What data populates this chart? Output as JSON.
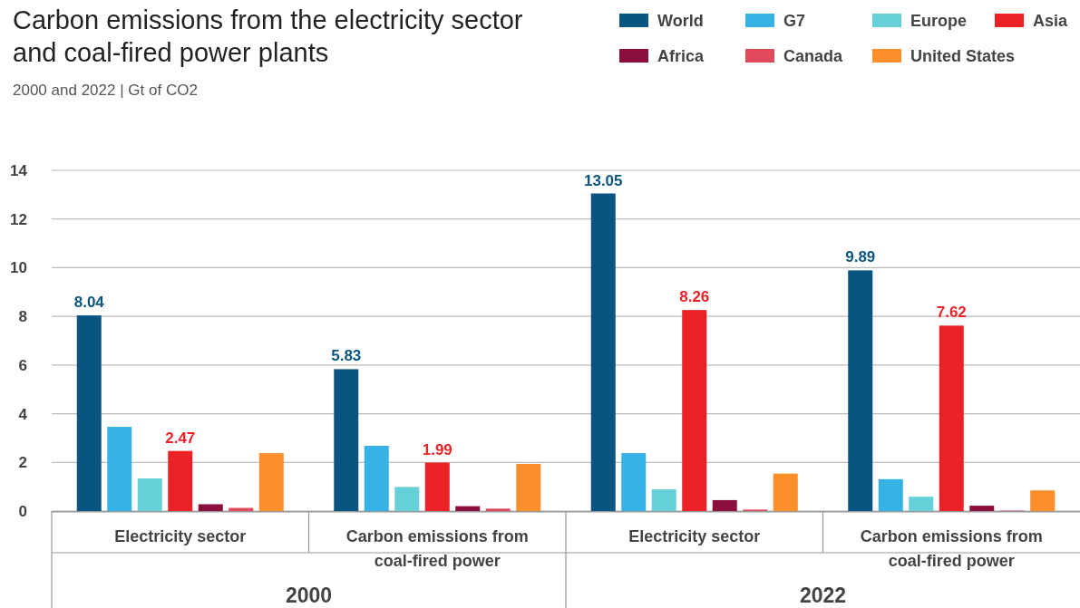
{
  "chart_data": {
    "type": "bar",
    "title": "Carbon emissions from the electricity sector and coal-fired power plants",
    "subtitle": "2000 and 2022  |  Gt of CO2",
    "categories": [
      "Electricity sector",
      "Carbon emissions from coal-fired power",
      "Electricity sector",
      "Carbon emissions from coal-fired power"
    ],
    "annotations": [
      "2000",
      "2022"
    ],
    "series": [
      {
        "name": "World",
        "color": "#0a5482",
        "values": [
          8.04,
          5.83,
          13.05,
          9.89
        ],
        "value_labels": [
          "8.04",
          "5.83",
          "13.05",
          "9.89"
        ]
      },
      {
        "name": "G7",
        "color": "#36b3e4",
        "values": [
          3.46,
          2.68,
          2.38,
          1.31
        ]
      },
      {
        "name": "Europe",
        "color": "#65d0d8",
        "values": [
          1.34,
          0.99,
          0.89,
          0.59
        ]
      },
      {
        "name": "Asia",
        "color": "#ec2125",
        "values": [
          2.47,
          1.99,
          8.26,
          7.62
        ],
        "value_labels": [
          "2.47",
          "1.99",
          "8.26",
          "7.62"
        ]
      },
      {
        "name": "Africa",
        "color": "#8b0e3e",
        "values": [
          0.28,
          0.2,
          0.45,
          0.22
        ]
      },
      {
        "name": "Canada",
        "color": "#e04a5c",
        "values": [
          0.13,
          0.1,
          0.06,
          0.02
        ]
      },
      {
        "name": "United States",
        "color": "#fd8f2a",
        "values": [
          2.38,
          1.94,
          1.54,
          0.85
        ]
      }
    ],
    "ylim": [
      0,
      14
    ],
    "yticks": [
      0,
      2,
      4,
      6,
      8,
      10,
      12,
      14
    ],
    "grid": "y",
    "legend": "top right"
  }
}
